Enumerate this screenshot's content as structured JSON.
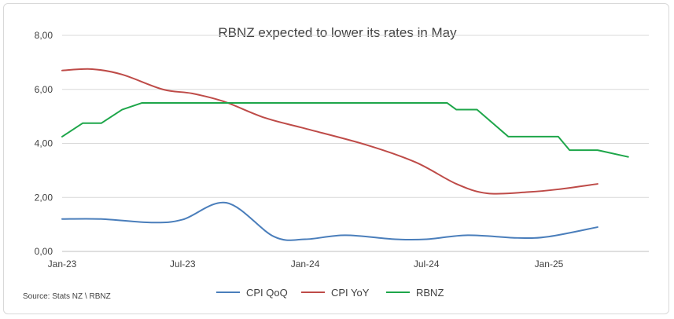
{
  "chart_data": {
    "type": "line",
    "title": "RBNZ expected to lower its rates in May",
    "source": "Source: Stats NZ \\ RBNZ",
    "ylim": [
      0,
      8
    ],
    "y_ticks": [
      0,
      2,
      4,
      6,
      8
    ],
    "y_tick_labels": [
      "0,00",
      "2,00",
      "4,00",
      "6,00",
      "8,00"
    ],
    "x_range": [
      "2023-01-01",
      "2025-05-31"
    ],
    "x_ticks": [
      {
        "date": "2023-01-01",
        "label": "Jan-23"
      },
      {
        "date": "2023-07-01",
        "label": "Jul-23"
      },
      {
        "date": "2024-01-01",
        "label": "Jan-24"
      },
      {
        "date": "2024-07-01",
        "label": "Jul-24"
      },
      {
        "date": "2025-01-01",
        "label": "Jan-25"
      }
    ],
    "grid": true,
    "legend_position": "bottom",
    "series": [
      {
        "name": "CPI QoQ",
        "color": "#4a7ebb",
        "smooth": true,
        "points": [
          [
            "2023-01-01",
            1.2
          ],
          [
            "2023-03-01",
            1.2
          ],
          [
            "2023-05-15",
            1.07
          ],
          [
            "2023-07-01",
            1.18
          ],
          [
            "2023-09-05",
            1.8
          ],
          [
            "2023-11-15",
            0.55
          ],
          [
            "2024-01-01",
            0.45
          ],
          [
            "2024-03-01",
            0.6
          ],
          [
            "2024-05-15",
            0.45
          ],
          [
            "2024-07-01",
            0.45
          ],
          [
            "2024-09-01",
            0.6
          ],
          [
            "2024-11-15",
            0.5
          ],
          [
            "2025-01-01",
            0.55
          ],
          [
            "2025-03-15",
            0.9
          ]
        ]
      },
      {
        "name": "CPI YoY",
        "color": "#be4b48",
        "smooth": true,
        "points": [
          [
            "2023-01-01",
            6.7
          ],
          [
            "2023-02-15",
            6.75
          ],
          [
            "2023-04-01",
            6.55
          ],
          [
            "2023-06-01",
            6.0
          ],
          [
            "2023-07-15",
            5.85
          ],
          [
            "2023-09-01",
            5.55
          ],
          [
            "2023-11-01",
            4.95
          ],
          [
            "2024-01-01",
            4.55
          ],
          [
            "2024-04-01",
            3.95
          ],
          [
            "2024-06-15",
            3.3
          ],
          [
            "2024-08-15",
            2.5
          ],
          [
            "2024-10-01",
            2.15
          ],
          [
            "2024-12-01",
            2.2
          ],
          [
            "2025-01-15",
            2.3
          ],
          [
            "2025-03-15",
            2.5
          ]
        ]
      },
      {
        "name": "RBNZ",
        "color": "#1ea64a",
        "smooth": false,
        "points": [
          [
            "2023-01-01",
            4.25
          ],
          [
            "2023-02-01",
            4.75
          ],
          [
            "2023-03-01",
            4.75
          ],
          [
            "2023-04-01",
            5.25
          ],
          [
            "2023-05-01",
            5.5
          ],
          [
            "2024-08-01",
            5.5
          ],
          [
            "2024-08-15",
            5.25
          ],
          [
            "2024-09-15",
            5.25
          ],
          [
            "2024-11-01",
            4.25
          ],
          [
            "2025-01-15",
            4.25
          ],
          [
            "2025-02-01",
            3.75
          ],
          [
            "2025-03-15",
            3.75
          ],
          [
            "2025-04-30",
            3.5
          ]
        ]
      }
    ]
  }
}
